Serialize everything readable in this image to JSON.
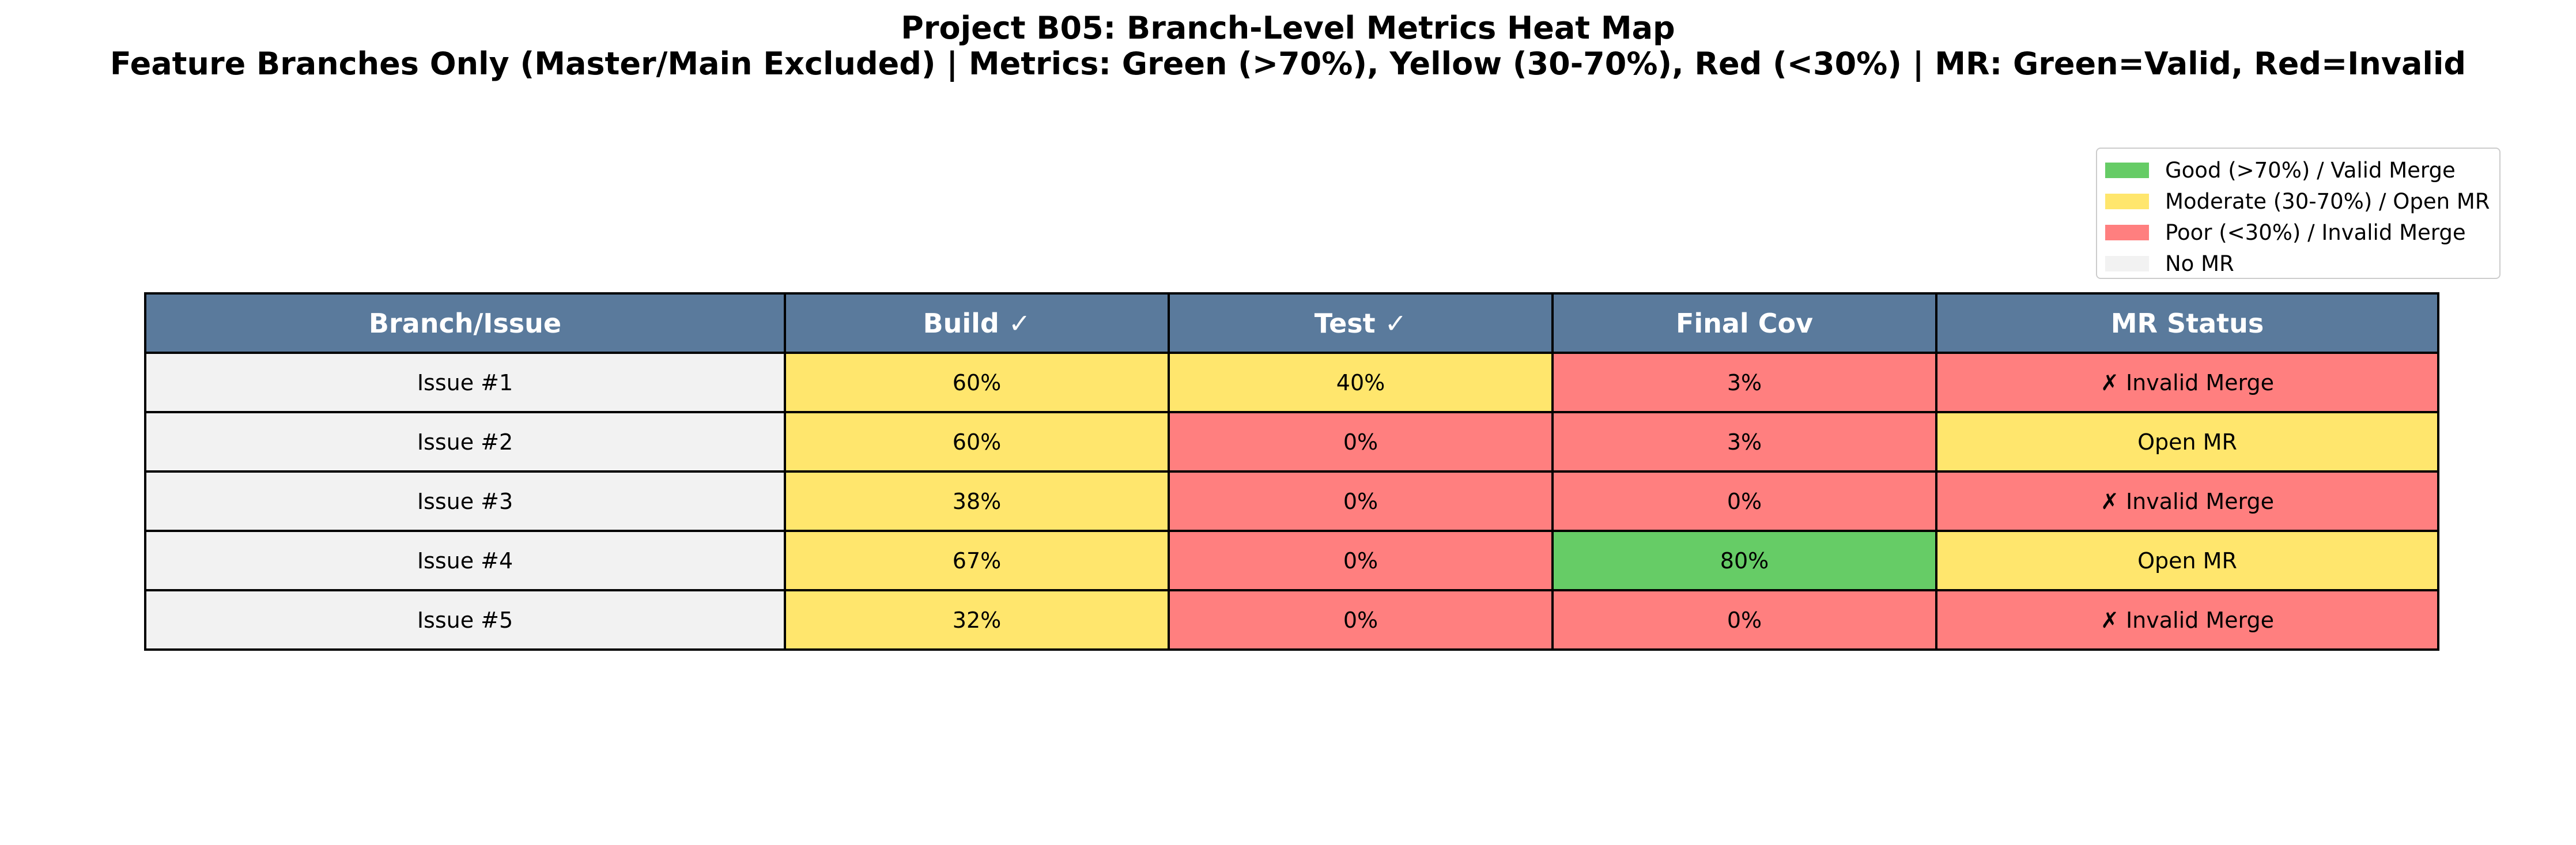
{
  "chart_data": {
    "type": "table",
    "title": "Project B05: Branch-Level Metrics Heat Map",
    "subtitle": "Feature Branches Only (Master/Main Excluded) | Metrics: Green (>70%), Yellow (30-70%), Red (<30%) | MR: Green=Valid, Red=Invalid",
    "columns": [
      "Branch/Issue",
      "Build ✓",
      "Test ✓",
      "Final Cov",
      "MR Status"
    ],
    "rows": [
      {
        "branch": "Issue #1",
        "build": "60%",
        "test": "40%",
        "cov": "3%",
        "mr": "✗ Invalid Merge"
      },
      {
        "branch": "Issue #2",
        "build": "60%",
        "test": "0%",
        "cov": "3%",
        "mr": "Open MR"
      },
      {
        "branch": "Issue #3",
        "build": "38%",
        "test": "0%",
        "cov": "0%",
        "mr": "✗ Invalid Merge"
      },
      {
        "branch": "Issue #4",
        "build": "67%",
        "test": "0%",
        "cov": "80%",
        "mr": "Open MR"
      },
      {
        "branch": "Issue #5",
        "build": "32%",
        "test": "0%",
        "cov": "0%",
        "mr": "✗ Invalid Merge"
      }
    ],
    "cell_colors": [
      [
        "#f2f2f2",
        "#ffe66d",
        "#ffe66d",
        "#ff7f7f",
        "#ff7f7f"
      ],
      [
        "#f2f2f2",
        "#ffe66d",
        "#ff7f7f",
        "#ff7f7f",
        "#ffe66d"
      ],
      [
        "#f2f2f2",
        "#ffe66d",
        "#ff7f7f",
        "#ff7f7f",
        "#ff7f7f"
      ],
      [
        "#f2f2f2",
        "#ffe66d",
        "#ff7f7f",
        "#66cc66",
        "#ffe66d"
      ],
      [
        "#f2f2f2",
        "#ffe66d",
        "#ff7f7f",
        "#ff7f7f",
        "#ff7f7f"
      ]
    ],
    "header_color": "#5a7a9c",
    "legend": {
      "placement": "top-right",
      "entries": [
        {
          "label": "Good (>70%) / Valid Merge",
          "color": "#66cc66"
        },
        {
          "label": "Moderate (30-70%) / Open MR",
          "color": "#ffe66d"
        },
        {
          "label": "Poor (<30%) / Invalid Merge",
          "color": "#ff7f7f"
        },
        {
          "label": "No MR",
          "color": "#f2f2f2"
        }
      ]
    }
  }
}
